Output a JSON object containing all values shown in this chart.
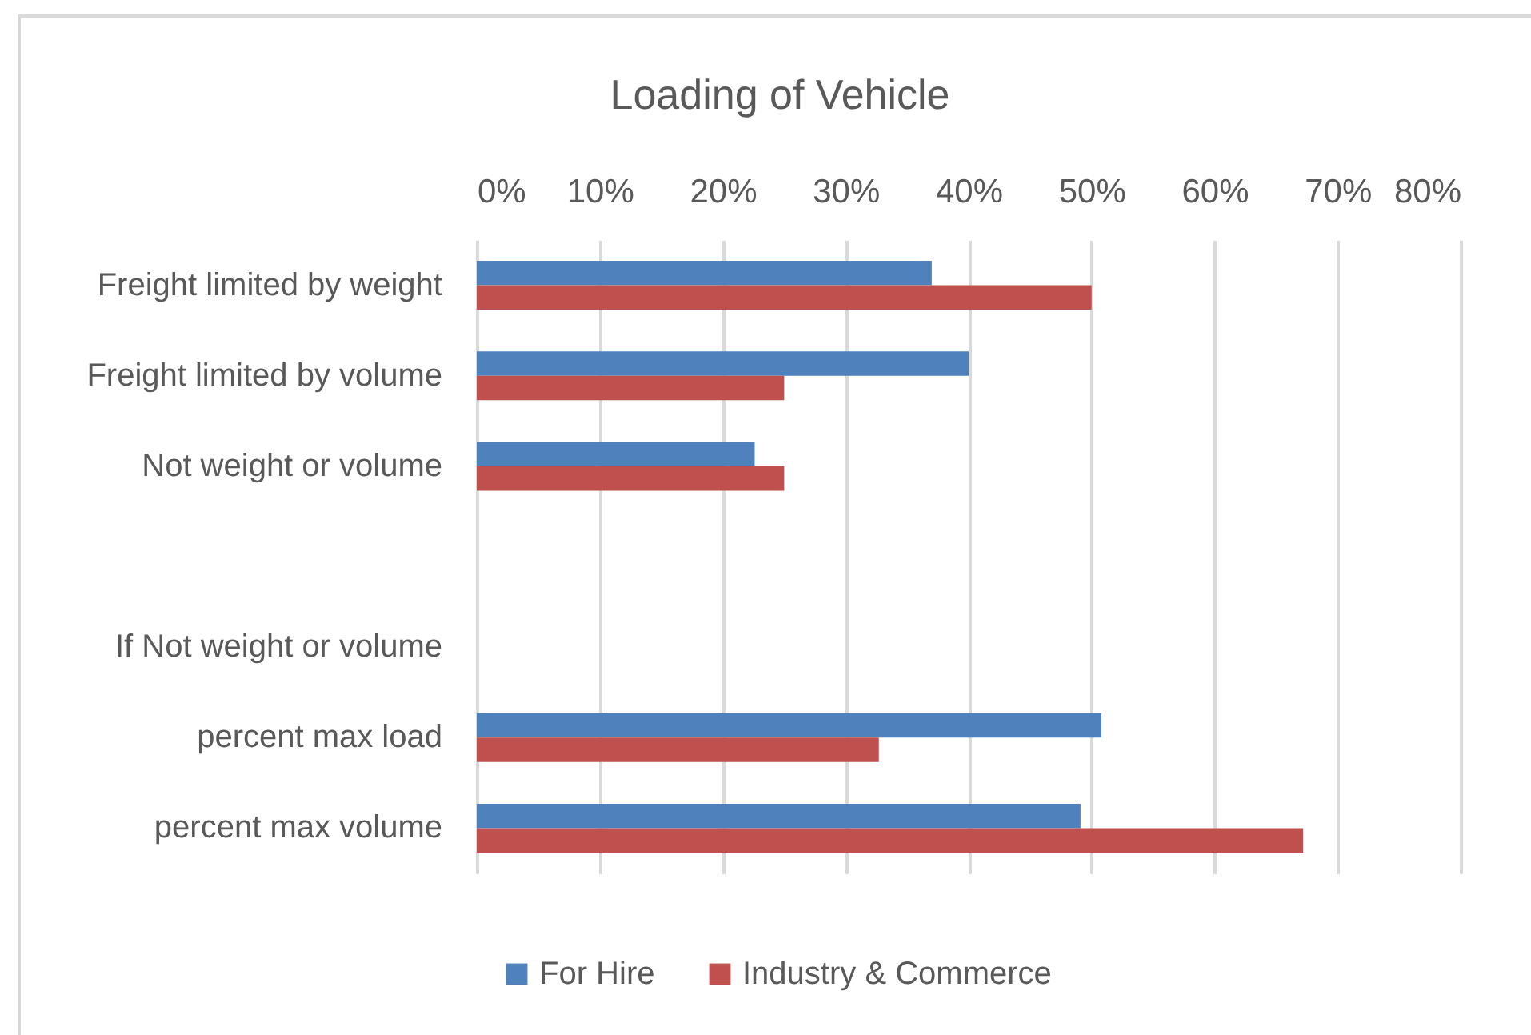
{
  "chart_data": {
    "type": "bar",
    "orientation": "horizontal",
    "title": "Loading of Vehicle",
    "categories": [
      "Freight limited by weight",
      "Freight limited by volume",
      "Not weight or volume",
      null,
      "If Not weight or volume",
      "percent max load",
      "percent max volume"
    ],
    "series": [
      {
        "name": "For Hire",
        "color": "#4f81bd",
        "values": [
          37,
          40,
          22.6,
          null,
          null,
          50.8,
          49.1
        ]
      },
      {
        "name": "Industry & Commerce",
        "color": "#c0504d",
        "values": [
          50,
          25,
          25,
          null,
          null,
          32.7,
          67.2
        ]
      }
    ],
    "xlim": [
      0,
      80
    ],
    "xticks": [
      {
        "value": 0,
        "label": "0%"
      },
      {
        "value": 10,
        "label": "10%"
      },
      {
        "value": 20,
        "label": "20%"
      },
      {
        "value": 30,
        "label": "30%"
      },
      {
        "value": 40,
        "label": "40%"
      },
      {
        "value": 50,
        "label": "50%"
      },
      {
        "value": 60,
        "label": "60%"
      },
      {
        "value": 70,
        "label": "70%"
      },
      {
        "value": 80,
        "label": "80%"
      }
    ],
    "grid": "x",
    "legend": "bottom"
  }
}
